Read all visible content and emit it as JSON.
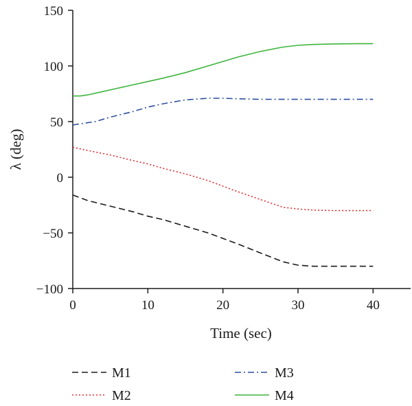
{
  "chart_data": {
    "type": "line",
    "xlabel": "Time (sec)",
    "ylabel": "λ (deg)",
    "xlim": [
      0,
      45
    ],
    "ylim": [
      -100,
      150
    ],
    "xticks": [
      0,
      10,
      20,
      30,
      40
    ],
    "yticks": [
      150,
      100,
      50,
      0,
      -50,
      -100
    ],
    "ytick_labels": [
      "150",
      "100",
      "50",
      "0",
      "−50",
      "−100"
    ],
    "grid": false,
    "legend_position": "below",
    "series": [
      {
        "name": "M1",
        "color": "#1a1a1a",
        "dash": "dashed",
        "x": [
          0,
          2,
          5,
          8,
          10,
          12,
          15,
          18,
          20,
          22,
          25,
          28,
          30,
          32,
          35,
          38,
          40
        ],
        "y": [
          -16,
          -21,
          -26,
          -31,
          -35,
          -38,
          -44,
          -50,
          -55,
          -60,
          -68,
          -76,
          -79,
          -80,
          -80,
          -80,
          -80
        ]
      },
      {
        "name": "M2",
        "color": "#e8282d",
        "dash": "dotted",
        "x": [
          0,
          2,
          5,
          8,
          10,
          12,
          15,
          18,
          20,
          22,
          25,
          28,
          30,
          32,
          35,
          38,
          40
        ],
        "y": [
          27,
          24,
          20,
          15,
          12,
          8,
          3,
          -3,
          -8,
          -13,
          -20,
          -27,
          -28.5,
          -29.5,
          -30,
          -30,
          -30
        ]
      },
      {
        "name": "M3",
        "color": "#2e4fa0",
        "dash": "dashdot",
        "x": [
          0,
          1,
          3,
          5,
          8,
          10,
          12,
          15,
          18,
          20,
          22,
          25,
          28,
          30,
          35,
          40
        ],
        "y": [
          47,
          48,
          50,
          54,
          59,
          63,
          66,
          69.5,
          71,
          71,
          70.5,
          70,
          70,
          70,
          70,
          70
        ]
      },
      {
        "name": "M4",
        "color": "#3cb43c",
        "dash": "solid",
        "x": [
          0,
          1,
          2,
          4,
          6,
          8,
          10,
          12,
          15,
          18,
          20,
          22,
          25,
          28,
          30,
          32,
          35,
          38,
          40
        ],
        "y": [
          73,
          73,
          74,
          77,
          80,
          83,
          86,
          89,
          94,
          100,
          104,
          108,
          113,
          117,
          118.5,
          119.3,
          119.8,
          120,
          120
        ]
      }
    ]
  }
}
